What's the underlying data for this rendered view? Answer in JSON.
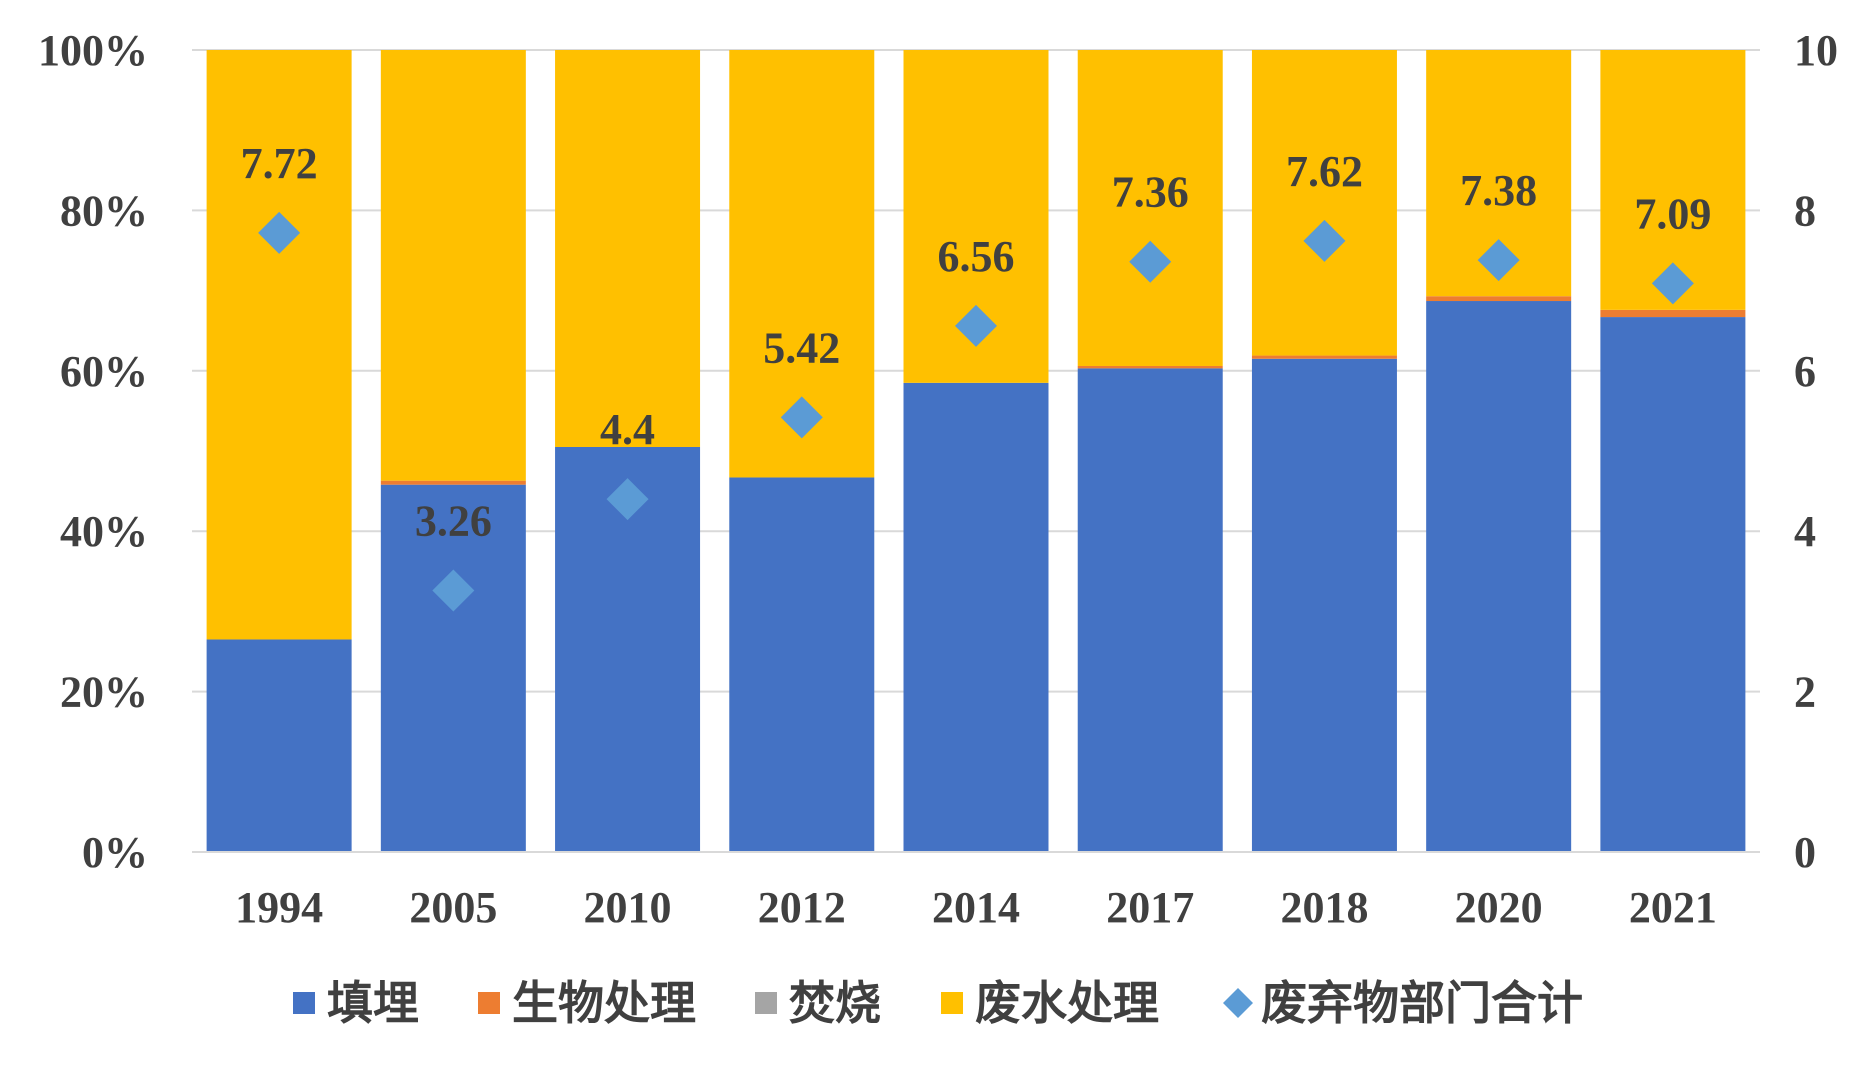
{
  "chart_data": {
    "type": "bar",
    "stacked": "percent",
    "categories": [
      "1994",
      "2005",
      "2010",
      "2012",
      "2014",
      "2017",
      "2018",
      "2020",
      "2021"
    ],
    "series": [
      {
        "name": "填埋",
        "color": "#4472C4",
        "values": [
          26.5,
          45.8,
          50.5,
          46.7,
          58.5,
          60.3,
          61.5,
          68.7,
          66.7
        ]
      },
      {
        "name": "生物处理",
        "color": "#ED7D31",
        "values": [
          0,
          0.5,
          0,
          0,
          0,
          0.3,
          0.4,
          0.6,
          0.9
        ]
      },
      {
        "name": "焚烧",
        "color": "#A5A5A5",
        "values": [
          0,
          0,
          0,
          0,
          0,
          0,
          0,
          0,
          0
        ]
      },
      {
        "name": "废水处理",
        "color": "#FFC000",
        "values": [
          73.5,
          53.7,
          49.5,
          53.3,
          41.5,
          39.4,
          38.1,
          30.7,
          32.4
        ]
      }
    ],
    "line_series": {
      "name": "废弃物部门合计",
      "color": "#5B9BD5",
      "marker": "diamond",
      "axis": "right",
      "values": [
        7.72,
        3.26,
        4.4,
        5.42,
        6.56,
        7.36,
        7.62,
        7.38,
        7.09
      ],
      "labels": [
        "7.72",
        "3.26",
        "4.4",
        "5.42",
        "6.56",
        "7.36",
        "7.62",
        "7.38",
        "7.09"
      ]
    },
    "y_left": {
      "ylim": [
        0,
        100
      ],
      "ticks": [
        0,
        20,
        40,
        60,
        80,
        100
      ],
      "tick_labels": [
        "0%",
        "20%",
        "40%",
        "60%",
        "80%",
        "100%"
      ]
    },
    "y_right": {
      "ylim": [
        0,
        10
      ],
      "ticks": [
        0,
        2,
        4,
        6,
        8,
        10
      ],
      "tick_labels": [
        "0",
        "2",
        "4",
        "6",
        "8",
        "10"
      ]
    },
    "grid": true,
    "legend_position": "bottom",
    "title": "",
    "xlabel": "",
    "ylabel": ""
  }
}
